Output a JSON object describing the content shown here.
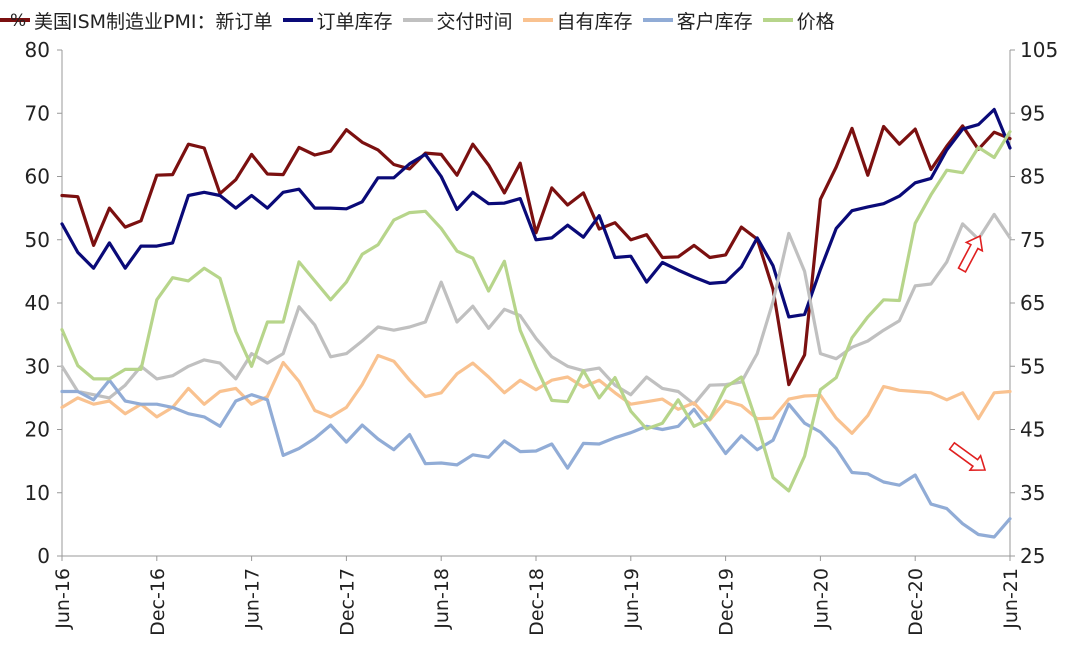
{
  "chart_data": {
    "type": "line",
    "unit_label": "%",
    "x": [
      "2016-06",
      "2016-07",
      "2016-08",
      "2016-09",
      "2016-10",
      "2016-11",
      "2016-12",
      "2017-01",
      "2017-02",
      "2017-03",
      "2017-04",
      "2017-05",
      "2017-06",
      "2017-07",
      "2017-08",
      "2017-09",
      "2017-10",
      "2017-11",
      "2017-12",
      "2018-01",
      "2018-02",
      "2018-03",
      "2018-04",
      "2018-05",
      "2018-06",
      "2018-07",
      "2018-08",
      "2018-09",
      "2018-10",
      "2018-11",
      "2018-12",
      "2019-01",
      "2019-02",
      "2019-03",
      "2019-04",
      "2019-05",
      "2019-06",
      "2019-07",
      "2019-08",
      "2019-09",
      "2019-10",
      "2019-11",
      "2019-12",
      "2020-01",
      "2020-02",
      "2020-03",
      "2020-04",
      "2020-05",
      "2020-06",
      "2020-07",
      "2020-08",
      "2020-09",
      "2020-10",
      "2020-11",
      "2020-12",
      "2021-01",
      "2021-02",
      "2021-03",
      "2021-04",
      "2021-05",
      "2021-06"
    ],
    "x_tick_labels": [
      "Jun-16",
      "Dec-16",
      "Jun-17",
      "Dec-17",
      "Jun-18",
      "Dec-18",
      "Jun-19",
      "Dec-19",
      "Jun-20",
      "Dec-20",
      "Jun-21"
    ],
    "left_axis": {
      "min": 0,
      "max": 80,
      "ticks": [
        0,
        10,
        20,
        30,
        40,
        50,
        60,
        70,
        80
      ]
    },
    "right_axis": {
      "min": 25,
      "max": 105,
      "ticks": [
        25,
        35,
        45,
        55,
        65,
        75,
        85,
        95,
        105
      ]
    },
    "series": [
      {
        "name": "美国ISM制造业PMI：新订单",
        "axis": "left",
        "color": "#7b1010",
        "values": [
          57,
          56.8,
          49.1,
          55,
          52,
          53,
          60.2,
          60.3,
          65.1,
          64.5,
          57.3,
          59.5,
          63.5,
          60.4,
          60.3,
          64.6,
          63.4,
          64,
          67.4,
          65.4,
          64.2,
          61.9,
          61.2,
          63.7,
          63.5,
          60.2,
          65.1,
          61.8,
          57.4,
          62.1,
          51.1,
          58.2,
          55.5,
          57.4,
          51.7,
          52.7,
          50,
          50.8,
          47.2,
          47.3,
          49.1,
          47.2,
          47.6,
          52,
          50.1,
          42.2,
          27.1,
          31.8,
          56.4,
          61.5,
          67.6,
          60.2,
          67.9,
          65.1,
          67.5,
          61.1,
          64.8,
          68,
          64.3,
          67,
          66
        ]
      },
      {
        "name": "订单库存",
        "axis": "left",
        "color": "#0a0a78",
        "values": [
          52.5,
          48,
          45.5,
          49.5,
          45.5,
          49,
          49,
          49.5,
          57,
          57.5,
          57,
          55,
          57,
          55,
          57.5,
          58,
          55,
          55,
          54.9,
          56,
          59.8,
          59.8,
          62,
          63.5,
          60,
          54.8,
          57.5,
          55.7,
          55.8,
          56.5,
          50,
          50.3,
          52.3,
          50.4,
          53.8,
          47.2,
          47.4,
          43.3,
          46.4,
          45.2,
          44.1,
          43.1,
          43.3,
          45.7,
          50.3,
          45.9,
          37.8,
          38.2,
          45.3,
          51.8,
          54.6,
          55.2,
          55.7,
          56.9,
          59,
          59.7,
          64.2,
          67.5,
          68.2,
          70.6,
          64.5
        ]
      },
      {
        "name": "交付时间",
        "axis": "left",
        "color": "#c0c0c0",
        "values": [
          30,
          26,
          25.5,
          25,
          27,
          30,
          28,
          28.5,
          30,
          31,
          30.5,
          28,
          32,
          30.5,
          32,
          39.4,
          36.5,
          31.5,
          32,
          34,
          36.2,
          35.7,
          36.2,
          37,
          43.3,
          37,
          39.5,
          36,
          39,
          38,
          34.4,
          31.5,
          30,
          29.3,
          29.7,
          27,
          25.5,
          28.3,
          26.5,
          26,
          24,
          27,
          27.1,
          27.5,
          32,
          40.2,
          51,
          45,
          32,
          31.2,
          33,
          34,
          35.7,
          37.2,
          42.7,
          43,
          46.5,
          52.5,
          50.1,
          54,
          50.3
        ]
      },
      {
        "name": "自有库存",
        "axis": "left",
        "color": "#f9c290",
        "values": [
          23.5,
          25,
          24,
          24.5,
          22.5,
          24,
          22,
          23.5,
          26.5,
          24,
          26,
          26.5,
          24,
          25.2,
          30.6,
          27.6,
          23,
          22,
          23.5,
          27.1,
          31.7,
          30.8,
          27.8,
          25.2,
          25.8,
          28.8,
          30.5,
          28.3,
          25.8,
          27.8,
          26.3,
          27.8,
          28.3,
          26.7,
          27.8,
          25.8,
          24,
          24.4,
          24.8,
          23.2,
          24.2,
          21.5,
          24.5,
          23.8,
          21.7,
          21.8,
          24.8,
          25.3,
          25.4,
          21.8,
          19.4,
          22.2,
          26.8,
          26.2,
          26,
          25.8,
          24.7,
          25.8,
          21.7,
          25.8,
          26
        ]
      },
      {
        "name": "客户库存",
        "axis": "left",
        "color": "#91acd6",
        "values": [
          26,
          26,
          24.7,
          27.8,
          24.5,
          24,
          24,
          23.5,
          22.5,
          22,
          20.5,
          24.5,
          25.5,
          24.7,
          15.9,
          17,
          18.6,
          20.7,
          18,
          20.7,
          18.5,
          16.8,
          19.2,
          14.6,
          14.7,
          14.4,
          16,
          15.6,
          18.2,
          16.5,
          16.6,
          17.7,
          13.9,
          17.8,
          17.7,
          18.7,
          19.5,
          20.5,
          20,
          20.5,
          23.2,
          19.8,
          16.2,
          19,
          16.8,
          18.3,
          24,
          21,
          19.6,
          17,
          13.2,
          13,
          11.7,
          11.2,
          12.8,
          8.2,
          7.5,
          5.1,
          3.4,
          3,
          5.9
        ]
      },
      {
        "name": "价格",
        "axis": "right",
        "color": "#b7d58b",
        "values": [
          60.8,
          55.1,
          53,
          53,
          54.5,
          54.5,
          65.5,
          69,
          68.5,
          70.5,
          68.9,
          60.5,
          55,
          62,
          62,
          71.5,
          68.5,
          65.5,
          68.3,
          72.7,
          74.2,
          78.1,
          79.3,
          79.5,
          76.8,
          73.2,
          72.1,
          66.9,
          71.6,
          60.7,
          54.9,
          49.6,
          49.4,
          54.3,
          50,
          53.2,
          47.9,
          45.1,
          46,
          49.7,
          45.5,
          46.7,
          51.7,
          53.3,
          45.9,
          37.4,
          35.3,
          40.8,
          51.3,
          53.2,
          59.5,
          62.8,
          65.5,
          65.4,
          77.6,
          82.1,
          86,
          85.6,
          89.6,
          88,
          92.1
        ]
      }
    ]
  }
}
